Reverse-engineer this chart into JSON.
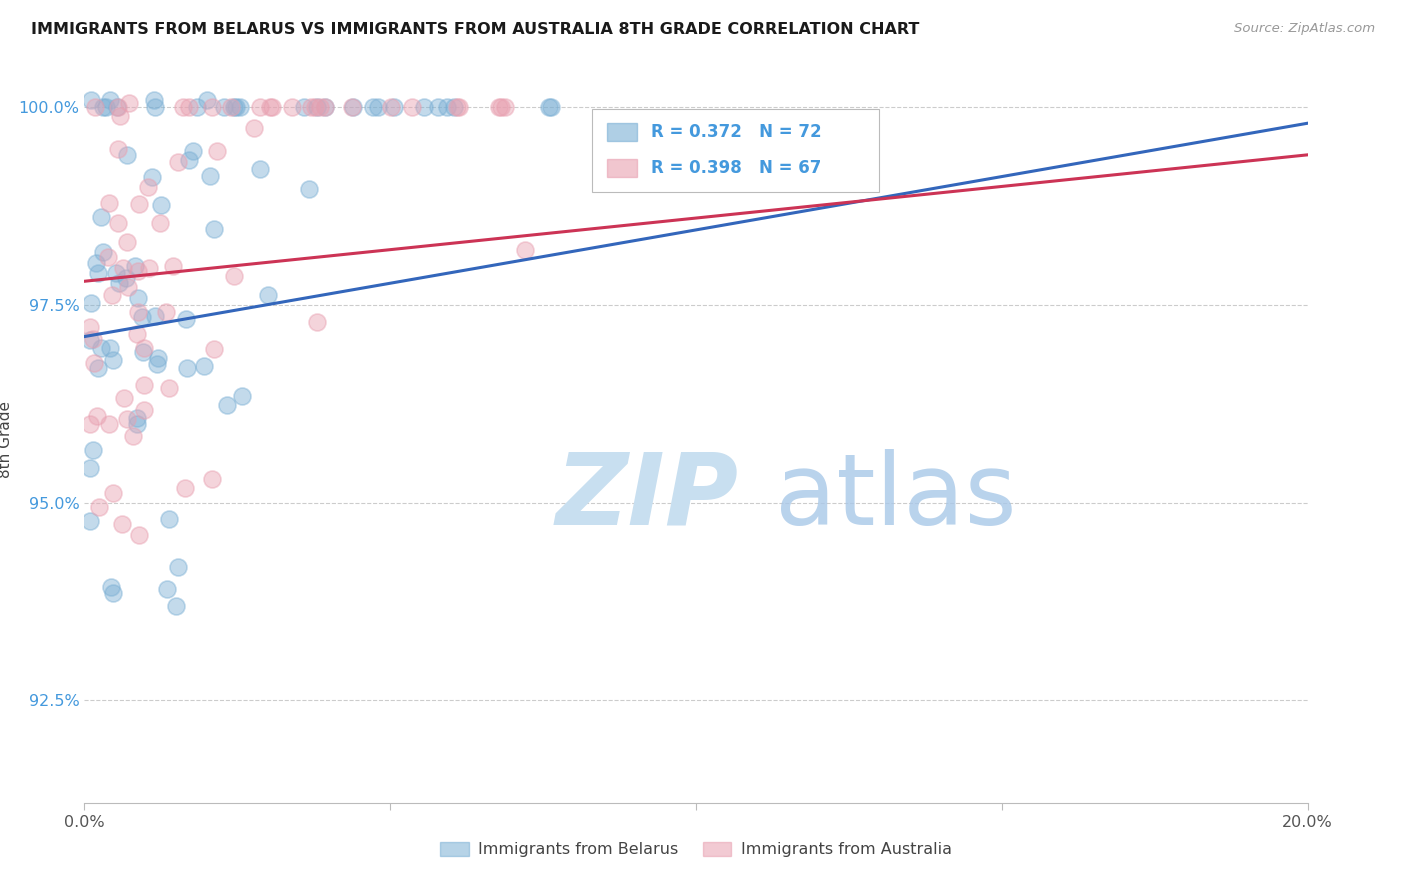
{
  "title": "IMMIGRANTS FROM BELARUS VS IMMIGRANTS FROM AUSTRALIA 8TH GRADE CORRELATION CHART",
  "source": "Source: ZipAtlas.com",
  "ylabel": "8th Grade",
  "xlim": [
    0.0,
    0.2
  ],
  "ylim": [
    0.912,
    1.004
  ],
  "yticks": [
    0.925,
    0.95,
    0.975,
    1.0
  ],
  "ytick_labels": [
    "92.5%",
    "95.0%",
    "97.5%",
    "100.0%"
  ],
  "xtick_positions": [
    0.0,
    0.05,
    0.1,
    0.15,
    0.2
  ],
  "xtick_labels": [
    "0.0%",
    "",
    "",
    "",
    "20.0%"
  ],
  "legend_r_belarus": "R = 0.372",
  "legend_n_belarus": "N = 72",
  "legend_r_australia": "R = 0.398",
  "legend_n_australia": "N = 67",
  "color_belarus": "#7bafd4",
  "color_australia": "#e8a0b0",
  "color_trendline_belarus": "#3366bb",
  "color_trendline_australia": "#cc3355",
  "color_ytick": "#4499dd",
  "background_color": "#ffffff",
  "watermark_zip_color": "#c8dff0",
  "watermark_atlas_color": "#a8c8e8"
}
